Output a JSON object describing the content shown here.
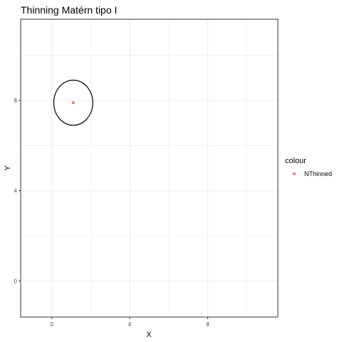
{
  "chart_data": {
    "type": "scatter",
    "title": "Thinning Matérn tipo I",
    "xlabel": "X",
    "ylabel": "Y",
    "xlim": [
      -1.6,
      11.6
    ],
    "ylim": [
      -1.6,
      11.6
    ],
    "x_ticks": [
      0,
      4,
      8
    ],
    "y_ticks": [
      0,
      4,
      8
    ],
    "x_tick_labels": [
      "0",
      "4",
      "8"
    ],
    "y_tick_labels": [
      "0",
      "4",
      "8"
    ],
    "grid": true,
    "background": "#ffffff",
    "grid_color": "#ebebeb",
    "panel_border_color": "#333333",
    "legend": {
      "title": "colour",
      "position": "right",
      "entries": [
        {
          "label": "NThinned",
          "color": "#f8766d"
        }
      ]
    },
    "series": [
      {
        "name": "NThinned",
        "color": "#f8766d",
        "points": [
          {
            "x": 1.1,
            "y": 7.9
          }
        ]
      }
    ],
    "circles": [
      {
        "cx": 1.1,
        "cy": 7.9,
        "r": 1.0,
        "color": "#000000"
      }
    ]
  }
}
